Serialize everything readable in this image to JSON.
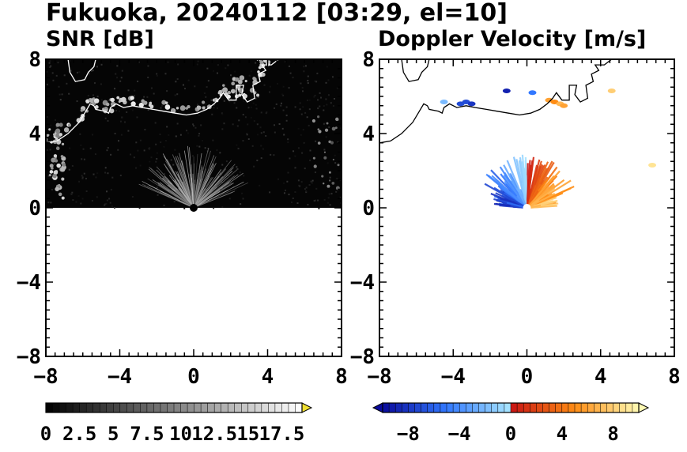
{
  "title": "Fukuoka, 20240112 [03:29, el=10]",
  "chart_data": [
    {
      "type": "heatmap",
      "panel": "left",
      "title": "SNR [dB]",
      "xlim": [
        -8,
        8
      ],
      "ylim": [
        -8,
        8
      ],
      "xticks": [
        -8,
        -4,
        0,
        4,
        8
      ],
      "yticks": [
        -8,
        -4,
        0,
        4,
        8
      ],
      "xtick_labels": [
        "−8",
        "−4",
        "0",
        "4",
        "8"
      ],
      "ytick_labels": [
        "−8",
        "−4",
        "0",
        "4",
        "8"
      ],
      "grid": false,
      "coastline_color": "#ffffff",
      "colormap": "grayscale (black to white, yellow extension)",
      "colorbar": {
        "min": 0,
        "max": 19,
        "step": 0.5,
        "extend": "max",
        "tick_values": [
          0,
          2.5,
          5,
          7.5,
          10,
          12.5,
          15,
          17.5
        ],
        "tick_labels": [
          "0",
          "2.5",
          "5",
          "7.5",
          "10",
          "12.5",
          "15",
          "17.5"
        ],
        "extension_color": "#f0e030"
      }
    },
    {
      "type": "heatmap",
      "panel": "right",
      "title": "Doppler Velocity [m/s]",
      "xlim": [
        -8,
        8
      ],
      "ylim": [
        -8,
        8
      ],
      "xticks": [
        -8,
        -4,
        0,
        4,
        8
      ],
      "yticks": [
        -8,
        -4,
        0,
        4,
        8
      ],
      "xtick_labels": [
        "−8",
        "−4",
        "0",
        "4",
        "8"
      ],
      "ytick_labels": [
        "−8",
        "−4",
        "0",
        "4",
        "8"
      ],
      "grid": false,
      "coastline_color": "#000000",
      "colormap": "diverging (cyan-blue negative, red-yellow positive)",
      "colorbar": {
        "min": -10,
        "max": 10,
        "step": 0.5,
        "extend": "both",
        "tick_values": [
          -8,
          -4,
          0,
          4,
          8
        ],
        "tick_labels": [
          "−8",
          "−4",
          "0",
          "4",
          "8"
        ]
      }
    }
  ]
}
